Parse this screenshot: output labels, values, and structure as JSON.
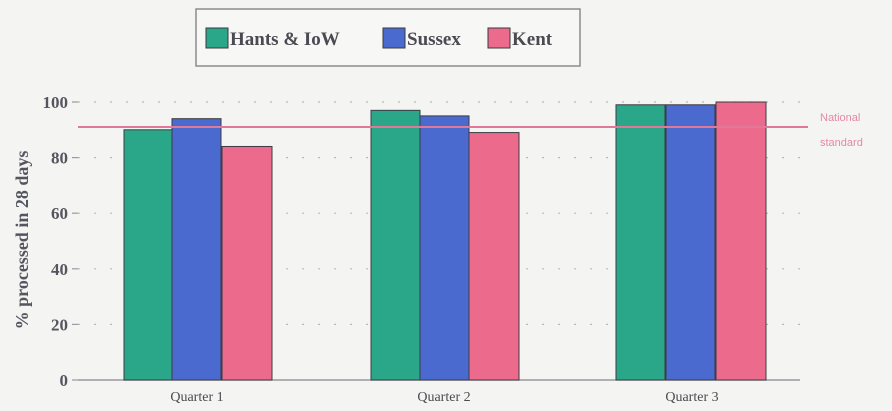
{
  "chart_data": {
    "type": "bar",
    "categories": [
      "Quarter 1",
      "Quarter 2",
      "Quarter 3"
    ],
    "series": [
      {
        "name": "Hants & IoW",
        "color": "#2aa688",
        "values": [
          90,
          97,
          99
        ]
      },
      {
        "name": "Sussex",
        "color": "#4a6ad0",
        "values": [
          94,
          95,
          99
        ]
      },
      {
        "name": "Kent",
        "color": "#ec6a8c",
        "values": [
          84,
          89,
          100
        ]
      }
    ],
    "ylabel": "% processed in 28 days",
    "ylim": [
      0,
      100
    ],
    "yticks": [
      0,
      20,
      40,
      60,
      80,
      100
    ],
    "grid": true,
    "legend_position": "top-center",
    "reference_line": {
      "value": 91,
      "label_line1": "National",
      "label_line2": "standard",
      "color": "#e07898"
    }
  }
}
